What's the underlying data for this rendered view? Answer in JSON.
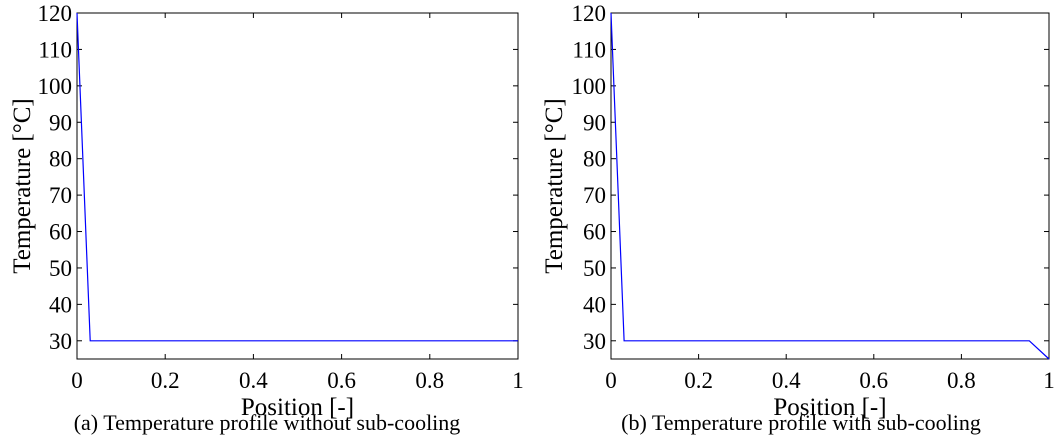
{
  "chart_data": [
    {
      "type": "line",
      "panel": "a",
      "caption": "(a) Temperature profile without sub-cooling",
      "xlabel": "Position [-]",
      "ylabel": "Temperature [°C]",
      "xlim": [
        0,
        1
      ],
      "ylim": [
        25,
        120
      ],
      "xticks": [
        "0",
        "0.2",
        "0.4",
        "0.6",
        "0.8",
        "1"
      ],
      "yticks": [
        "30",
        "40",
        "50",
        "60",
        "70",
        "80",
        "90",
        "100",
        "110",
        "120"
      ],
      "grid": false,
      "series": [
        {
          "color": "#0000ff",
          "x": [
            0,
            0.03,
            1
          ],
          "y": [
            120,
            30,
            30
          ]
        }
      ]
    },
    {
      "type": "line",
      "panel": "b",
      "caption": "(b) Temperature profile with sub-cooling",
      "xlabel": "Position [-]",
      "ylabel": "Temperature [°C]",
      "xlim": [
        0,
        1
      ],
      "ylim": [
        25,
        120
      ],
      "xticks": [
        "0",
        "0.2",
        "0.4",
        "0.6",
        "0.8",
        "1"
      ],
      "yticks": [
        "30",
        "40",
        "50",
        "60",
        "70",
        "80",
        "90",
        "100",
        "110",
        "120"
      ],
      "grid": false,
      "series": [
        {
          "color": "#0000ff",
          "x": [
            0,
            0.03,
            0.955,
            1
          ],
          "y": [
            120,
            30,
            30,
            25
          ]
        }
      ]
    }
  ]
}
